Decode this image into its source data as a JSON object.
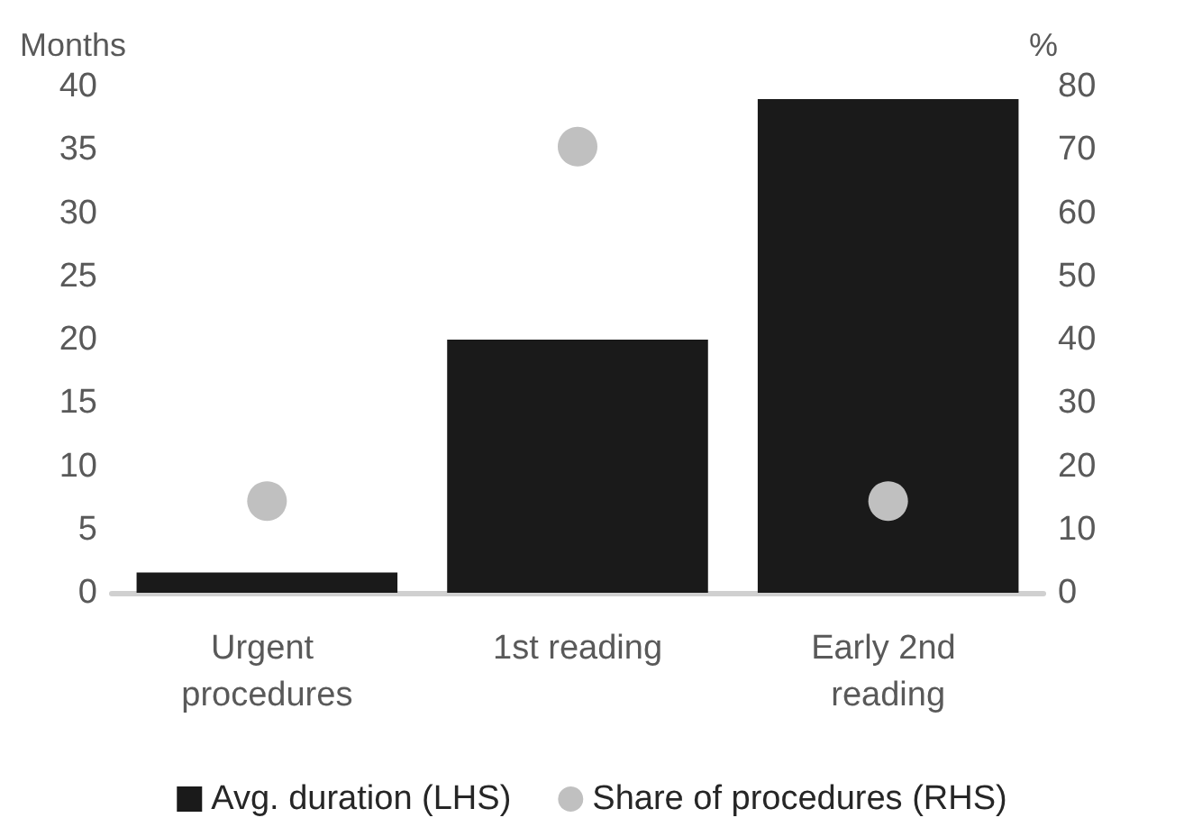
{
  "chart_data": {
    "type": "bar",
    "categories": [
      "Urgent procedures",
      "1st reading",
      "Early 2nd reading"
    ],
    "ylabel": "Months",
    "y2label": "%",
    "series": [
      {
        "name": "Avg. duration (LHS)",
        "color": "#1a1a1a",
        "values": [
          1.6,
          20,
          39
        ]
      },
      {
        "name": "Share of procedures (RHS)",
        "type": "scatter",
        "axis": "y2",
        "color": "#c0c0c0",
        "marker": "circle",
        "x": [
          "Urgent procedures",
          "1st reading",
          "Early 2nd reading"
        ],
        "values": [
          14.5,
          70.5,
          14.5
        ]
      }
    ],
    "ylim": [
      0,
      40
    ],
    "yticks": [
      0,
      5,
      10,
      15,
      20,
      25,
      30,
      35,
      40
    ],
    "y2lim": [
      0,
      80
    ],
    "y2ticks": [
      0,
      10,
      20,
      30,
      40,
      50,
      60,
      70,
      80
    ],
    "grid": false,
    "legend": "bottom"
  }
}
